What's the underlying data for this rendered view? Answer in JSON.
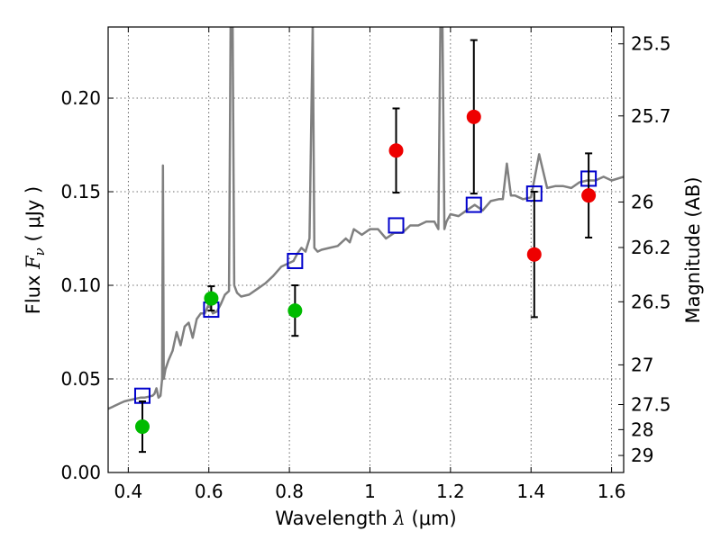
{
  "chart_data": {
    "type": "scatter",
    "xlabel": "Wavelength  λ (μm)",
    "ylabel": "Flux  F_ν  ( μJy )",
    "y2label": "Magnitude (AB)",
    "xlim": [
      0.35,
      1.63
    ],
    "ylim": [
      0.0,
      0.238
    ],
    "grid": true,
    "x_ticks": [
      {
        "value": 0.4,
        "label": "0.4"
      },
      {
        "value": 0.6,
        "label": "0.6"
      },
      {
        "value": 0.8,
        "label": "0.8"
      },
      {
        "value": 1.0,
        "label": "1"
      },
      {
        "value": 1.2,
        "label": "1.2"
      },
      {
        "value": 1.4,
        "label": "1.4"
      },
      {
        "value": 1.6,
        "label": "1.6"
      }
    ],
    "y_ticks": [
      {
        "value": 0.0,
        "label": "0.00"
      },
      {
        "value": 0.05,
        "label": "0.05"
      },
      {
        "value": 0.1,
        "label": "0.10"
      },
      {
        "value": 0.15,
        "label": "0.15"
      },
      {
        "value": 0.2,
        "label": "0.20"
      }
    ],
    "y2_ticks": [
      {
        "label": "25.5",
        "flux": 0.229
      },
      {
        "label": "25.7",
        "flux": 0.1905
      },
      {
        "label": "26",
        "flux": 0.1445
      },
      {
        "label": "26.2",
        "flux": 0.1202
      },
      {
        "label": "26.5",
        "flux": 0.0912
      },
      {
        "label": "27",
        "flux": 0.0575
      },
      {
        "label": "27.5",
        "flux": 0.0363
      },
      {
        "label": "28",
        "flux": 0.0229
      },
      {
        "label": "29",
        "flux": 0.0091
      }
    ],
    "series": [
      {
        "kind": "model-spectrum",
        "color": "#808080",
        "x": [
          0.35,
          0.36,
          0.37,
          0.38,
          0.39,
          0.4,
          0.41,
          0.42,
          0.43,
          0.44,
          0.45,
          0.46,
          0.465,
          0.47,
          0.475,
          0.48,
          0.484,
          0.486,
          0.488,
          0.492,
          0.5,
          0.51,
          0.52,
          0.53,
          0.54,
          0.55,
          0.56,
          0.57,
          0.58,
          0.59,
          0.6,
          0.61,
          0.62,
          0.63,
          0.64,
          0.65,
          0.654,
          0.6563,
          0.659,
          0.663,
          0.67,
          0.68,
          0.7,
          0.72,
          0.74,
          0.76,
          0.78,
          0.8,
          0.81,
          0.82,
          0.83,
          0.84,
          0.85,
          0.858,
          0.862,
          0.87,
          0.88,
          0.9,
          0.92,
          0.94,
          0.95,
          0.96,
          0.98,
          1.0,
          1.02,
          1.04,
          1.06,
          1.08,
          1.1,
          1.12,
          1.14,
          1.16,
          1.17,
          1.175,
          1.18,
          1.185,
          1.19,
          1.2,
          1.22,
          1.24,
          1.26,
          1.28,
          1.3,
          1.32,
          1.33,
          1.34,
          1.35,
          1.36,
          1.38,
          1.4,
          1.42,
          1.44,
          1.46,
          1.48,
          1.5,
          1.52,
          1.54,
          1.56,
          1.58,
          1.6,
          1.63
        ],
        "y": [
          0.034,
          0.035,
          0.036,
          0.037,
          0.038,
          0.0385,
          0.039,
          0.0395,
          0.04,
          0.04,
          0.0405,
          0.041,
          0.042,
          0.045,
          0.04,
          0.041,
          0.05,
          0.164,
          0.05,
          0.055,
          0.06,
          0.065,
          0.075,
          0.068,
          0.078,
          0.08,
          0.072,
          0.082,
          0.085,
          0.085,
          0.09,
          0.085,
          0.086,
          0.09,
          0.095,
          0.097,
          0.24,
          0.24,
          0.24,
          0.1,
          0.096,
          0.094,
          0.095,
          0.098,
          0.101,
          0.105,
          0.11,
          0.112,
          0.113,
          0.117,
          0.12,
          0.118,
          0.125,
          0.24,
          0.12,
          0.118,
          0.119,
          0.12,
          0.121,
          0.125,
          0.123,
          0.13,
          0.127,
          0.13,
          0.13,
          0.125,
          0.128,
          0.128,
          0.132,
          0.132,
          0.134,
          0.134,
          0.13,
          0.24,
          0.24,
          0.13,
          0.134,
          0.138,
          0.137,
          0.14,
          0.143,
          0.14,
          0.145,
          0.146,
          0.146,
          0.165,
          0.148,
          0.148,
          0.146,
          0.147,
          0.17,
          0.152,
          0.153,
          0.153,
          0.152,
          0.155,
          0.156,
          0.156,
          0.158,
          0.156,
          0.158
        ]
      },
      {
        "kind": "model-photometry",
        "marker": "open-square",
        "color": "#0000cc",
        "x": [
          0.435,
          0.606,
          0.814,
          1.065,
          1.258,
          1.408,
          1.543
        ],
        "y": [
          0.041,
          0.087,
          0.113,
          0.132,
          0.143,
          0.149,
          0.157
        ]
      },
      {
        "kind": "observed",
        "marker": "filled-circle",
        "color": "#00bb00",
        "x": [
          0.435,
          0.606,
          0.814
        ],
        "y": [
          0.0245,
          0.093,
          0.0865
        ],
        "err": [
          0.0135,
          0.0065,
          0.0135
        ]
      },
      {
        "kind": "observed",
        "marker": "filled-circle",
        "color": "#ee0000",
        "x": [
          1.065,
          1.258,
          1.408,
          1.543
        ],
        "y": [
          0.172,
          0.19,
          0.1165,
          0.148
        ],
        "err": [
          0.0225,
          0.041,
          0.0335,
          0.0225
        ]
      }
    ]
  }
}
